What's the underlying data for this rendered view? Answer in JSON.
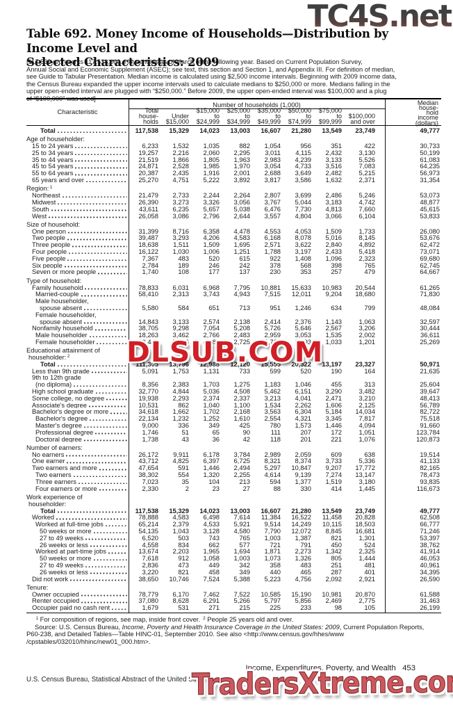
{
  "watermarks": {
    "top": "TC4S.net",
    "middle": "DLSUB.COM",
    "bottom": "TradersXtreme.com"
  },
  "title": {
    "line1": "Table 692. Money Income of Households—Distribution by Income Level and",
    "line2": "Selected Characteristics: 2009"
  },
  "headnote": "[117,538 represents 117,538,000. Households as of March of the following year. Based on Current Population Survey,\nAnnual Social and Economic Supplement (ASEC); see text, this section and Section 1, and Appendix III. For definition of median,\nsee Guide to Tabular Presentation.  Median income is calculated using $2,500 income intervals. Beginning with 2009 income data,\nthe Census Bureau expanded the upper income intervals used to calculate medians to $250,000 or more. Medians falling in the\nupper open-ended interval are plugged with “$250,000.” Before 2009, the upper open-ended interval was $100,000 and a plug\nof “$100,000” was used]",
  "table": {
    "header": {
      "characteristic": "Characteristic",
      "group": "Number of households (1,000)",
      "columns": [
        "Total\nhouse-\nholds",
        "Under\n$15,000",
        "$15,000\nto\n$24,999",
        "$25,000\nto\n$34,999",
        "$35,000\nto\n$49,999",
        "$50,000\nto\n$74,999",
        "$75,000\nto\n$99,999",
        "$100,000\nand over"
      ],
      "median": "Median\nhouse-\nhold\nincome\n(dollars)"
    },
    "rows": [
      {
        "t": "d",
        "b": 1,
        "ind": 4,
        "label": "Total",
        "v": [
          "117,538",
          "15,329",
          "14,023",
          "13,003",
          "16,607",
          "21,280",
          "13,549",
          "23,749",
          "49,777"
        ]
      },
      {
        "t": "s",
        "label": "Age of householder:"
      },
      {
        "t": "d",
        "ind": 1,
        "label": "15 to 24 years",
        "v": [
          "6,233",
          "1,532",
          "1,035",
          "882",
          "1,054",
          "956",
          "351",
          "422",
          "30,733"
        ]
      },
      {
        "t": "d",
        "ind": 1,
        "label": "25 to 34 years",
        "v": [
          "19,257",
          "2,216",
          "2,060",
          "2,295",
          "3,011",
          "4,115",
          "2,432",
          "3,130",
          "50,199"
        ]
      },
      {
        "t": "d",
        "ind": 1,
        "label": "35 to 44 years",
        "v": [
          "21,519",
          "1,866",
          "1,805",
          "1,963",
          "2,983",
          "4,239",
          "3,133",
          "5,526",
          "61,083"
        ]
      },
      {
        "t": "d",
        "ind": 1,
        "label": "45 to 54 years",
        "v": [
          "24,871",
          "2,528",
          "1,985",
          "1,970",
          "3,054",
          "4,733",
          "3,516",
          "7,083",
          "64,235"
        ]
      },
      {
        "t": "d",
        "ind": 1,
        "label": "55 to 64 years",
        "v": [
          "20,387",
          "2,435",
          "1,916",
          "2,001",
          "2,688",
          "3,649",
          "2,482",
          "5,215",
          "56,973"
        ]
      },
      {
        "t": "d",
        "ind": 1,
        "label": "65 years and over",
        "v": [
          "25,270",
          "4,751",
          "5,222",
          "3,892",
          "3,817",
          "3,586",
          "1,632",
          "2,371",
          "31,354"
        ]
      },
      {
        "t": "s",
        "label": "Region:",
        "sup": "1"
      },
      {
        "t": "d",
        "ind": 1,
        "label": "Northeast",
        "v": [
          "21,479",
          "2,733",
          "2,244",
          "2,264",
          "2,807",
          "3,699",
          "2,486",
          "5,246",
          "53,073"
        ]
      },
      {
        "t": "d",
        "ind": 1,
        "label": "Midwest",
        "v": [
          "26,390",
          "3,273",
          "3,326",
          "3,056",
          "3,767",
          "5,044",
          "3,183",
          "4,742",
          "48,877"
        ]
      },
      {
        "t": "d",
        "ind": 1,
        "label": "South",
        "v": [
          "43,611",
          "6,235",
          "5,657",
          "5,038",
          "6,476",
          "7,730",
          "4,813",
          "7,660",
          "45,615"
        ]
      },
      {
        "t": "d",
        "ind": 1,
        "label": "West",
        "v": [
          "26,058",
          "3,086",
          "2,796",
          "2,644",
          "3,557",
          "4,804",
          "3,066",
          "6,104",
          "53,833"
        ]
      },
      {
        "t": "s",
        "label": "Size of household:"
      },
      {
        "t": "d",
        "ind": 1,
        "label": "One person",
        "v": [
          "31,399",
          "8,716",
          "6,358",
          "4,478",
          "4,553",
          "4,053",
          "1,509",
          "1,733",
          "26,080"
        ]
      },
      {
        "t": "d",
        "ind": 1,
        "label": "Two people",
        "v": [
          "39,487",
          "3,293",
          "4,206",
          "4,583",
          "6,168",
          "8,078",
          "5,016",
          "8,145",
          "53,676"
        ]
      },
      {
        "t": "d",
        "ind": 1,
        "label": "Three people",
        "v": [
          "18,638",
          "1,511",
          "1,509",
          "1,695",
          "2,571",
          "3,622",
          "2,840",
          "4,892",
          "62,472"
        ]
      },
      {
        "t": "d",
        "ind": 1,
        "label": "Four people",
        "v": [
          "16,122",
          "1,030",
          "1,006",
          "1,251",
          "1,788",
          "3,197",
          "2,433",
          "5,418",
          "73,071"
        ]
      },
      {
        "t": "d",
        "ind": 1,
        "label": "Five people",
        "v": [
          "7,367",
          "483",
          "520",
          "615",
          "922",
          "1,408",
          "1,096",
          "2,323",
          "69,680"
        ]
      },
      {
        "t": "d",
        "ind": 1,
        "label": "Six people",
        "v": [
          "2,784",
          "189",
          "246",
          "242",
          "378",
          "568",
          "398",
          "765",
          "62,745"
        ]
      },
      {
        "t": "d",
        "ind": 1,
        "label": "Seven or more people",
        "v": [
          "1,740",
          "108",
          "177",
          "137",
          "230",
          "353",
          "257",
          "479",
          "64,667"
        ]
      },
      {
        "t": "s",
        "label": "Type of household:"
      },
      {
        "t": "d",
        "ind": 1,
        "label": "Family household",
        "v": [
          "78,833",
          "6,031",
          "6,968",
          "7,795",
          "10,881",
          "15,633",
          "10,983",
          "20,544",
          "61,265"
        ]
      },
      {
        "t": "d",
        "ind": 2,
        "label": "Married-couple",
        "v": [
          "58,410",
          "2,313",
          "3,743",
          "4,943",
          "7,515",
          "12,011",
          "9,204",
          "18,680",
          "71,830"
        ]
      },
      {
        "t": "l",
        "ind": 2,
        "label": "Male householder,"
      },
      {
        "t": "d",
        "ind": 3,
        "label": "spouse absent",
        "v": [
          "5,580",
          "584",
          "651",
          "713",
          "951",
          "1,246",
          "634",
          "799",
          "48,084"
        ]
      },
      {
        "t": "l",
        "ind": 2,
        "label": "Female householder,"
      },
      {
        "t": "d",
        "ind": 3,
        "label": "spouse absent",
        "v": [
          "14,843",
          "3,133",
          "2,574",
          "2,138",
          "2,414",
          "2,376",
          "1,143",
          "1,063",
          "32,597"
        ]
      },
      {
        "t": "d",
        "ind": 1,
        "label": "Nonfamily household",
        "v": [
          "38,705",
          "9,298",
          "7,054",
          "5,208",
          "5,726",
          "5,646",
          "2,567",
          "3,206",
          "30,444"
        ]
      },
      {
        "t": "d",
        "ind": 2,
        "label": "Male householder",
        "v": [
          "18,263",
          "3,462",
          "2,766",
          "2,483",
          "2,959",
          "3,053",
          "1,535",
          "2,002",
          "36,611"
        ]
      },
      {
        "t": "d",
        "ind": 2,
        "label": "Female householder",
        "v": [
          "20,442",
          "5,836",
          "4,288",
          "2,725",
          "2,767",
          "2,593",
          "1,033",
          "1,201",
          "25,269"
        ]
      },
      {
        "t": "s",
        "label": "Educational attainment of"
      },
      {
        "t": "s",
        "cont": 1,
        "label": "householder:",
        "sup": "2"
      },
      {
        "t": "d",
        "b": 1,
        "ind": 4,
        "label": "Total",
        "v": [
          "111,305",
          "13,796",
          "12,988",
          "12,120",
          "15,555",
          "20,322",
          "13,197",
          "23,327",
          "50,971"
        ]
      },
      {
        "t": "d",
        "ind": 1,
        "label": "Less than 9th grade",
        "v": [
          "5,091",
          "1,753",
          "1,131",
          "733",
          "599",
          "520",
          "190",
          "164",
          "21,635"
        ]
      },
      {
        "t": "l",
        "ind": 1,
        "label": "9th to 12th grade"
      },
      {
        "t": "d",
        "ind": 2,
        "label": "(no diploma)",
        "v": [
          "8,356",
          "2,383",
          "1,703",
          "1,275",
          "1,183",
          "1,046",
          "455",
          "313",
          "25,604"
        ]
      },
      {
        "t": "d",
        "ind": 1,
        "label": "High school graduate",
        "v": [
          "32,770",
          "4,844",
          "5,036",
          "4,508",
          "5,462",
          "6,151",
          "3,290",
          "3,482",
          "39,647"
        ]
      },
      {
        "t": "d",
        "ind": 1,
        "label": "Some college, no degree",
        "v": [
          "19,938",
          "2,293",
          "2,374",
          "2,337",
          "3,213",
          "4,041",
          "2,471",
          "3,210",
          "48,413"
        ]
      },
      {
        "t": "d",
        "ind": 1,
        "label": "Associate's degree",
        "v": [
          "10,531",
          "862",
          "1,040",
          "1,100",
          "1,534",
          "2,262",
          "1,606",
          "2,125",
          "56,789"
        ]
      },
      {
        "t": "d",
        "ind": 1,
        "label": "Bachelor's degree or more",
        "v": [
          "34,618",
          "1,662",
          "1,702",
          "2,168",
          "3,563",
          "6,304",
          "5,184",
          "14,034",
          "82,722"
        ]
      },
      {
        "t": "d",
        "ind": 2,
        "label": "Bachelor's degree",
        "v": [
          "22,134",
          "1,232",
          "1,252",
          "1,610",
          "2,554",
          "4,321",
          "3,345",
          "7,817",
          "75,518"
        ]
      },
      {
        "t": "d",
        "ind": 2,
        "label": "Master's degree",
        "v": [
          "9,000",
          "336",
          "349",
          "425",
          "780",
          "1,573",
          "1,446",
          "4,094",
          "91,660"
        ]
      },
      {
        "t": "d",
        "ind": 2,
        "label": "Professional degree",
        "v": [
          "1,746",
          "51",
          "65",
          "90",
          "111",
          "207",
          "172",
          "1,051",
          "123,784"
        ]
      },
      {
        "t": "d",
        "ind": 2,
        "label": "Doctoral degree",
        "v": [
          "1,738",
          "43",
          "36",
          "42",
          "118",
          "201",
          "221",
          "1,076",
          "120,873"
        ]
      },
      {
        "t": "s",
        "label": "Number of earners:"
      },
      {
        "t": "d",
        "ind": 1,
        "label": "No earners",
        "v": [
          "26,172",
          "9,911",
          "6,178",
          "3,784",
          "2,989",
          "2,059",
          "609",
          "638",
          "19,514"
        ]
      },
      {
        "t": "d",
        "ind": 1,
        "label": "One earner",
        "v": [
          "43,712",
          "4,825",
          "6,397",
          "6,725",
          "8,321",
          "8,374",
          "3,733",
          "5,336",
          "41,133"
        ]
      },
      {
        "t": "d",
        "ind": 1,
        "label": "Two earners and more",
        "v": [
          "47,654",
          "591",
          "1,446",
          "2,494",
          "5,297",
          "10,847",
          "9,207",
          "17,772",
          "82,165"
        ]
      },
      {
        "t": "d",
        "ind": 2,
        "label": "Two earners",
        "v": [
          "38,302",
          "554",
          "1,320",
          "2,255",
          "4,614",
          "9,139",
          "7,274",
          "13,147",
          "78,473"
        ]
      },
      {
        "t": "d",
        "ind": 2,
        "label": "Three earners",
        "v": [
          "7,023",
          "35",
          "104",
          "213",
          "594",
          "1,377",
          "1,519",
          "3,180",
          "93,835"
        ]
      },
      {
        "t": "d",
        "ind": 2,
        "label": "Four earners or more",
        "v": [
          "2,330",
          "2",
          "23",
          "27",
          "88",
          "330",
          "414",
          "1,445",
          "116,673"
        ]
      },
      {
        "t": "s",
        "label": "Work experience of"
      },
      {
        "t": "s",
        "cont": 1,
        "label": "householder:"
      },
      {
        "t": "d",
        "b": 1,
        "ind": 4,
        "label": "Total",
        "v": [
          "117,538",
          "15,329",
          "14,023",
          "13,003",
          "16,607",
          "21,280",
          "13,549",
          "23,749",
          "49,777"
        ]
      },
      {
        "t": "d",
        "ind": 1,
        "label": "Worked",
        "v": [
          "78,888",
          "4,583",
          "6,498",
          "7,614",
          "11,384",
          "16,522",
          "11,458",
          "20,828",
          "62,508"
        ]
      },
      {
        "t": "d",
        "ind": 2,
        "label": "Worked at full-time jobs",
        "v": [
          "65,214",
          "2,379",
          "4,533",
          "5,921",
          "9,514",
          "14,249",
          "10,115",
          "18,503",
          "66,777"
        ]
      },
      {
        "t": "d",
        "ind": 3,
        "label": "50 weeks or more",
        "v": [
          "54,135",
          "1,043",
          "3,128",
          "4,580",
          "7,790",
          "12,072",
          "8,845",
          "16,681",
          "71,246"
        ]
      },
      {
        "t": "d",
        "ind": 3,
        "label": "27 to 49 weeks",
        "v": [
          "6,520",
          "503",
          "743",
          "765",
          "1,003",
          "1,387",
          "821",
          "1,301",
          "53,397"
        ]
      },
      {
        "t": "d",
        "ind": 3,
        "label": "26 weeks or less",
        "v": [
          "4,558",
          "834",
          "662",
          "577",
          "721",
          "791",
          "450",
          "524",
          "38,762"
        ]
      },
      {
        "t": "d",
        "ind": 2,
        "label": "Worked at part-time jobs",
        "v": [
          "13,674",
          "2,203",
          "1,965",
          "1,694",
          "1,871",
          "2,273",
          "1,342",
          "2,325",
          "41,914"
        ]
      },
      {
        "t": "d",
        "ind": 3,
        "label": "50 weeks or more",
        "v": [
          "7,618",
          "912",
          "1,058",
          "1,003",
          "1,073",
          "1,326",
          "805",
          "1,444",
          "46,053"
        ]
      },
      {
        "t": "d",
        "ind": 3,
        "label": "27 to 49 weeks",
        "v": [
          "2,836",
          "473",
          "449",
          "342",
          "358",
          "483",
          "251",
          "481",
          "40,961"
        ]
      },
      {
        "t": "d",
        "ind": 3,
        "label": "26 weeks or less",
        "v": [
          "3,220",
          "821",
          "458",
          "349",
          "440",
          "465",
          "287",
          "401",
          "34,395"
        ]
      },
      {
        "t": "d",
        "ind": 1,
        "label": "Did not work",
        "v": [
          "38,650",
          "10,746",
          "7,524",
          "5,388",
          "5,223",
          "4,756",
          "2,092",
          "2,921",
          "26,590"
        ]
      },
      {
        "t": "s",
        "label": "Tenure:"
      },
      {
        "t": "d",
        "ind": 1,
        "label": "Owner occupied",
        "v": [
          "78,779",
          "6,170",
          "7,462",
          "7,522",
          "10,585",
          "15,190",
          "10,981",
          "20,870",
          "61,588"
        ]
      },
      {
        "t": "d",
        "ind": 1,
        "label": "Renter occupied",
        "v": [
          "37,080",
          "8,628",
          "6,291",
          "5,266",
          "5,797",
          "5,856",
          "2,469",
          "2,775",
          "31,463"
        ]
      },
      {
        "t": "d",
        "ind": 1,
        "label": "Occupier paid no cash rent",
        "v": [
          "1,679",
          "531",
          "271",
          "215",
          "225",
          "233",
          "98",
          "105",
          "26,199"
        ]
      }
    ]
  },
  "footnotes": {
    "sup1": "1",
    "text1": "For composition of regions, see map, inside front cover.",
    "sup2": "2",
    "text2": "People 25 years old and over.",
    "source_prefix": "Source: U.S. Census Bureau, ",
    "source_italic": "Income, Poverty and Health Insurance Coverage in the United States: 2009",
    "source_suffix": ", Current Population Reports, P60-238, and Detailed Tables—Table HINC-01, September 2010. See also <http://www.census.gov/hhes/www /cpstables/032010/hhinc/new01_000.htm>."
  },
  "footer": {
    "right": "Income, Expenditures, Poverty, and Wealth   453",
    "left": "U.S. Census Bureau, Statistical Abstract of the United States: 2012"
  }
}
